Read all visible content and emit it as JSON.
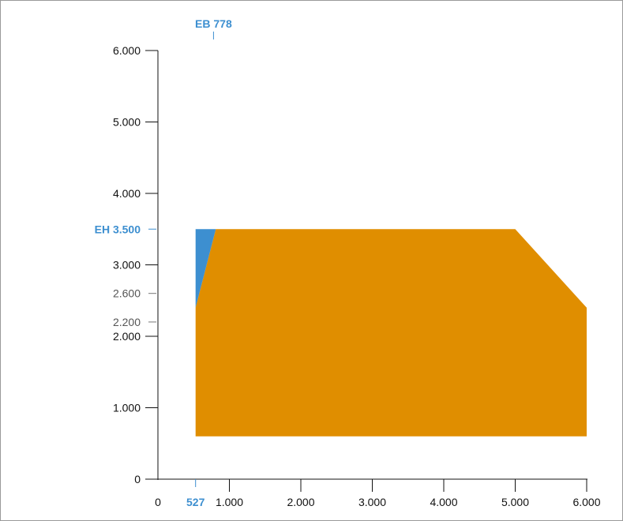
{
  "chart_data": {
    "type": "area",
    "x_axis": {
      "range": [
        0,
        6000
      ],
      "ticks": [
        {
          "value": 0,
          "label": "0"
        },
        {
          "value": 1000,
          "label": "1.000"
        },
        {
          "value": 2000,
          "label": "2.000"
        },
        {
          "value": 3000,
          "label": "3.000"
        },
        {
          "value": 4000,
          "label": "4.000"
        },
        {
          "value": 5000,
          "label": "5.000"
        },
        {
          "value": 6000,
          "label": "6.000"
        }
      ]
    },
    "y_axis": {
      "range": [
        0,
        6000
      ],
      "ticks": [
        {
          "value": 0,
          "label": "0"
        },
        {
          "value": 1000,
          "label": "1.000"
        },
        {
          "value": 2000,
          "label": "2.000"
        },
        {
          "value": 3000,
          "label": "3.000"
        },
        {
          "value": 4000,
          "label": "4.000"
        },
        {
          "value": 5000,
          "label": "5.000"
        },
        {
          "value": 6000,
          "label": "6.000"
        }
      ],
      "minor_ticks": [
        {
          "value": 2200,
          "label": "2.200"
        },
        {
          "value": 2600,
          "label": "2.600"
        }
      ]
    },
    "markers": {
      "eb": {
        "label": "EB 778",
        "value": 778
      },
      "eh": {
        "label": "EH 3.500",
        "value": 3500
      },
      "x_min": {
        "label": "527",
        "value": 527
      }
    },
    "regions": [
      {
        "color": "#e08e00",
        "points": [
          [
            527,
            600
          ],
          [
            527,
            2400
          ],
          [
            810,
            3500
          ],
          [
            5000,
            3500
          ],
          [
            6000,
            2400
          ],
          [
            6000,
            600
          ]
        ]
      },
      {
        "color": "#3d8fd0",
        "points": [
          [
            527,
            2400
          ],
          [
            527,
            3500
          ],
          [
            810,
            3500
          ]
        ]
      }
    ],
    "colors": {
      "axis": "#111111",
      "minor": "#777777",
      "marker": "#3d8fd0",
      "orange": "#e08e00",
      "blue": "#3d8fd0"
    }
  }
}
